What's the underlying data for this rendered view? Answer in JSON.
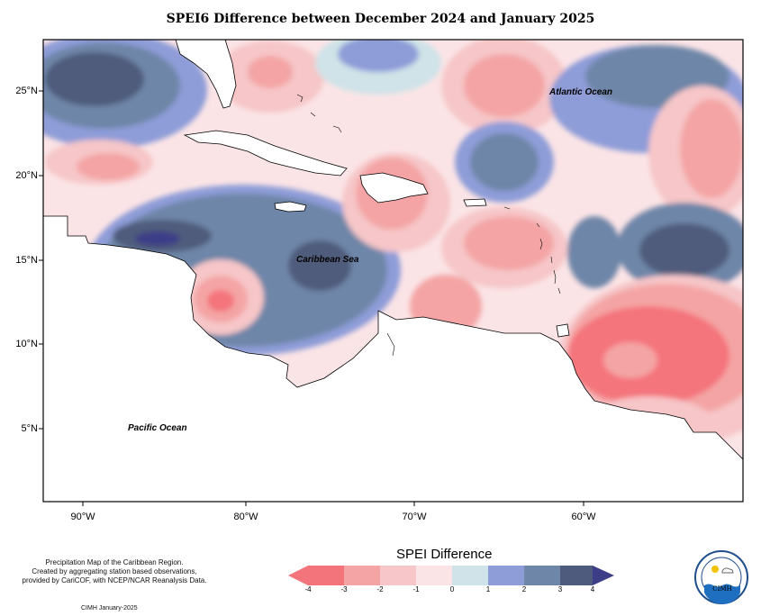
{
  "title": "SPEI6 Difference between December 2024 and January 2025",
  "axes": {
    "longitude_labels": [
      "90°W",
      "80°W",
      "70°W",
      "60°W"
    ],
    "latitude_labels": [
      "25°N",
      "20°N",
      "15°N",
      "10°N",
      "5°N"
    ]
  },
  "map_labels": {
    "atlantic": "Atlantic Ocean",
    "caribbean": "Caribbean Sea",
    "pacific": "Pacific Ocean"
  },
  "legend": {
    "title": "SPEI Difference",
    "ticks": [
      "-4",
      "-3",
      "-2",
      "-1",
      "0",
      "1",
      "2",
      "3",
      "4"
    ],
    "colors": [
      "#f4747c",
      "#f4a4a4",
      "#f6c6c8",
      "#fbe4e6",
      "#cfe3e8",
      "#8e9cd8",
      "#6e86a8",
      "#4f5b7c",
      "#3e3e88"
    ]
  },
  "credit": {
    "line1": "Precipitation Map of the Caribbean Region.",
    "line2": "Created by aggregating station based observations,",
    "line3": "provided by CariCOF, with NCEP/NCAR Reanalysis Data."
  },
  "footer": "CIMH January-2025",
  "logo": {
    "text": "CIMH"
  }
}
